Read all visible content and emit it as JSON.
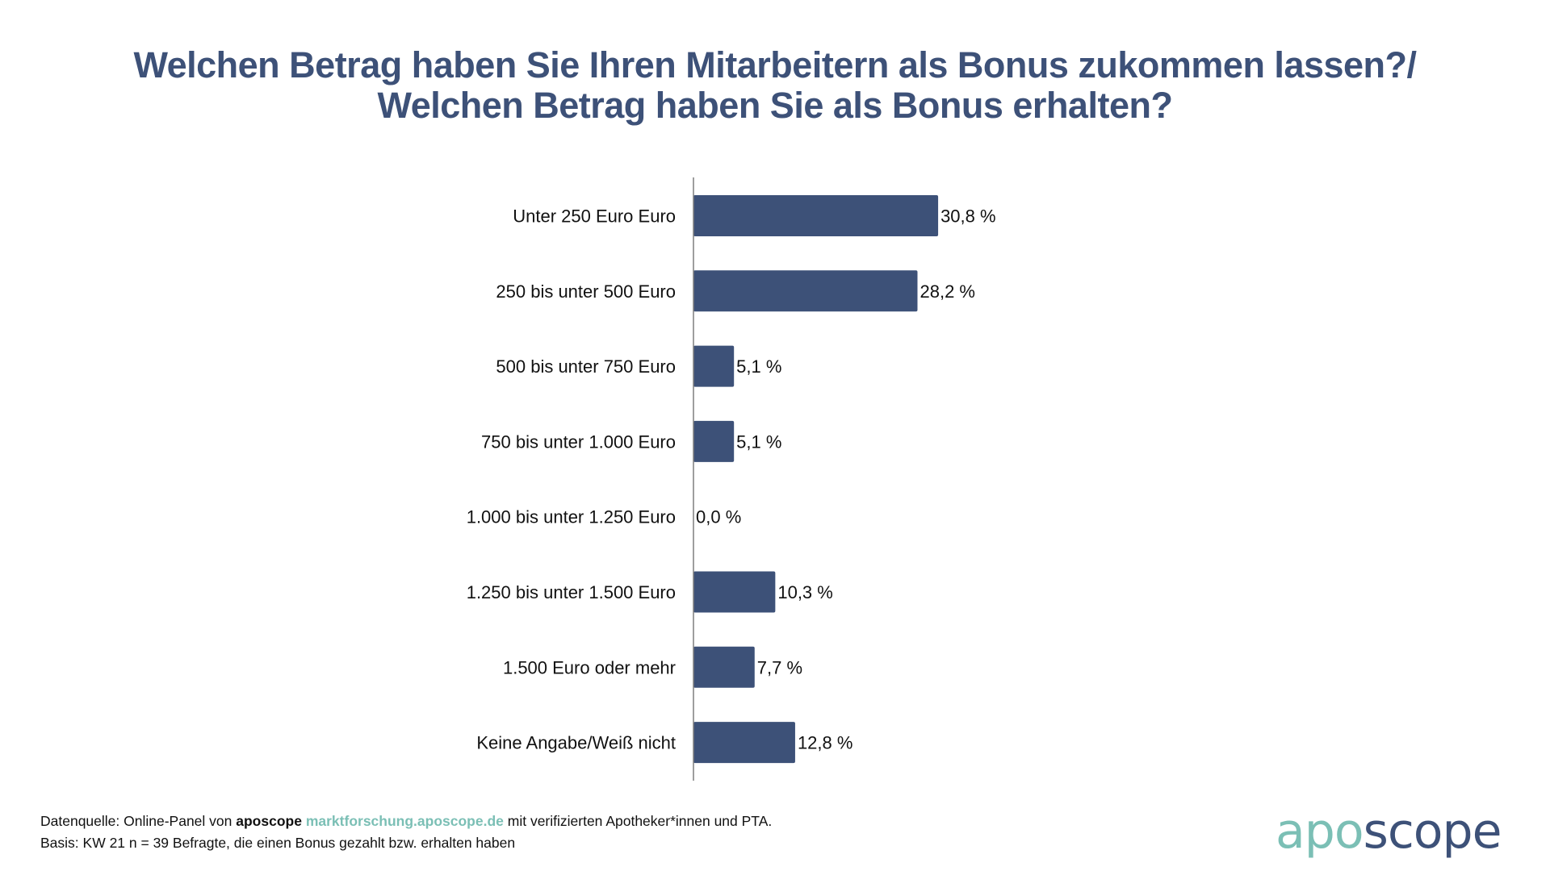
{
  "chart_data": {
    "type": "bar",
    "orientation": "horizontal",
    "title": "Welchen Betrag haben Sie Ihren Mitarbeitern als Bonus zukommen lassen?/ Welchen Betrag haben Sie als Bonus erhalten?",
    "title_lines": [
      "Welchen Betrag haben Sie Ihren Mitarbeitern als Bonus zukommen lassen?/",
      "Welchen Betrag haben Sie als Bonus erhalten?"
    ],
    "categories": [
      "Unter 250 Euro Euro",
      "250 bis unter 500 Euro",
      "500 bis unter 750 Euro",
      "750 bis unter 1.000 Euro",
      "1.000 bis unter 1.250 Euro",
      "1.250 bis unter 1.500 Euro",
      "1.500 Euro oder mehr",
      "Keine Angabe/Weiß nicht"
    ],
    "values": [
      30.8,
      28.2,
      5.1,
      5.1,
      0.0,
      10.3,
      7.7,
      12.8
    ],
    "value_labels": [
      "30,8 %",
      "28,2 %",
      "5,1 %",
      "5,1 %",
      "0,0 %",
      "10,3 %",
      "7,7 %",
      "12,8 %"
    ],
    "unit": "%",
    "xlabel": "",
    "ylabel": "",
    "xlim": [
      0,
      100
    ],
    "grid": false,
    "legend": "none",
    "bar_color": "#3d5178"
  },
  "footer": {
    "source_prefix": "Datenquelle: Online-Panel von ",
    "source_brand": "aposcope",
    "source_link": "marktforschung.aposcope.de",
    "source_suffix": " mit verifizierten Apotheker*innen und PTA.",
    "basis": "Basis: KW 21 n = 39 Befragte, die einen Bonus gezahlt bzw. erhalten haben"
  },
  "logo": {
    "part1": "apo",
    "part2": "scope",
    "color1": "#7bbfb5",
    "color2": "#3d5178"
  }
}
